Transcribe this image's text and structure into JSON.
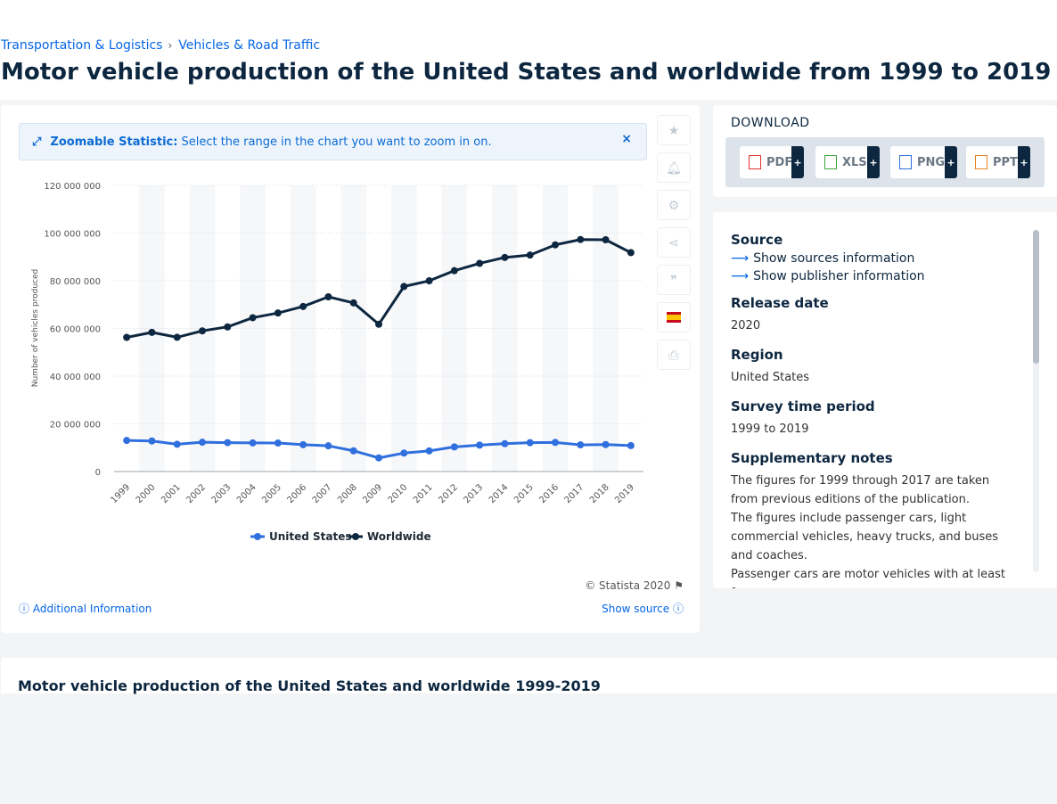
{
  "breadcrumb": [
    "Transportation & Logistics",
    "Vehicles & Road Traffic"
  ],
  "breadcrumb_sep": "›",
  "page_title": "Motor vehicle production of the United States and worldwide from 1999 to 2019",
  "zoom_banner": {
    "bold": "Zoomable Statistic:",
    "text": "Select the range in the chart you want to zoom in on.",
    "close": "×"
  },
  "tools": [
    "star-icon",
    "bell-icon",
    "gear-icon",
    "share-icon",
    "quote-icon",
    "flag-es-icon",
    "print-icon"
  ],
  "chart_footer": {
    "copyright": "© Statista 2020",
    "additional_info": "Additional Information",
    "show_source": "Show source"
  },
  "download": {
    "title": "DOWNLOAD",
    "buttons": [
      {
        "label": "PDF",
        "color": "#e2342f"
      },
      {
        "label": "XLS",
        "color": "#3ea23a"
      },
      {
        "label": "PNG",
        "color": "#2d6fd8"
      },
      {
        "label": "PPT",
        "color": "#e5821f"
      }
    ],
    "plus": "+"
  },
  "info": {
    "source_h": "Source",
    "links": [
      "Show sources information",
      "Show publisher information"
    ],
    "release_h": "Release date",
    "release_v": "2020",
    "region_h": "Region",
    "region_v": "United States",
    "survey_h": "Survey time period",
    "survey_v": "1999 to 2019",
    "notes_h": "Supplementary notes",
    "notes_v1": "The figures for 1999 through 2017 are taken from previous editions of the publication.",
    "notes_v2": "The figures include passenger cars, light commercial vehicles, heavy trucks, and buses and coaches.",
    "notes_v3": "Passenger cars are motor vehicles with at least four"
  },
  "table_title": "Motor vehicle production of the United States and worldwide 1999-2019",
  "colors": {
    "us": "#2f6fde",
    "world": "#0d2740",
    "accent": "#0666e5"
  },
  "chart_data": {
    "type": "line",
    "x": [
      "1999",
      "2000",
      "2001",
      "2002",
      "2003",
      "2004",
      "2005",
      "2006",
      "2007",
      "2008",
      "2009",
      "2010",
      "2011",
      "2012",
      "2013",
      "2014",
      "2015",
      "2016",
      "2017",
      "2018",
      "2019"
    ],
    "series": [
      {
        "name": "United States",
        "values": [
          13030000,
          12800000,
          11430000,
          12280000,
          12110000,
          11990000,
          11950000,
          11260000,
          10780000,
          8690000,
          5710000,
          7740000,
          8660000,
          10330000,
          11070000,
          11660000,
          12100000,
          12200000,
          11190000,
          11310000,
          10880000
        ]
      },
      {
        "name": "Worldwide",
        "values": [
          56260000,
          58370000,
          56300000,
          58990000,
          60660000,
          64500000,
          66480000,
          69220000,
          73270000,
          70730000,
          61760000,
          77610000,
          79990000,
          84240000,
          87300000,
          89780000,
          90780000,
          95060000,
          97300000,
          97200000,
          91800000
        ]
      }
    ],
    "ylabel": "Number of vehicles produced",
    "ylim": [
      0,
      120000000
    ],
    "yticks": [
      0,
      20000000,
      40000000,
      60000000,
      80000000,
      100000000,
      120000000
    ],
    "ytick_labels": [
      "0",
      "20 000 000",
      "40 000 000",
      "60 000 000",
      "80 000 000",
      "100 000 000",
      "120 000 000"
    ],
    "grid": true,
    "legend": "bottom-center"
  }
}
